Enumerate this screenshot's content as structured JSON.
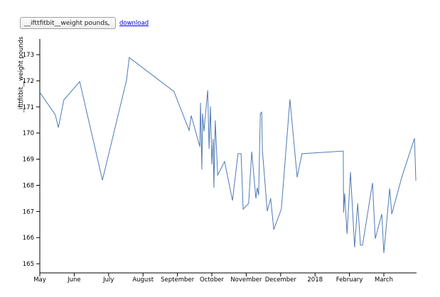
{
  "controls": {
    "selected": "__ifttfitbit__weight pounds",
    "download": "download"
  },
  "chart_data": {
    "type": "line",
    "y_label": "_ifttfitbit__weight pounds",
    "color": "#4e79b4",
    "x": [
      0,
      0.45,
      0.54,
      0.7,
      1.16,
      1.82,
      2.52,
      2.6,
      3.9,
      4.34,
      4.4,
      4.65,
      4.67,
      4.71,
      4.73,
      4.77,
      4.88,
      4.92,
      4.96,
      5.0,
      5.04,
      5.06,
      5.1,
      5.17,
      5.37,
      5.6,
      5.76,
      5.85,
      5.91,
      6.07,
      6.16,
      6.28,
      6.32,
      6.36,
      6.41,
      6.45,
      6.47,
      6.61,
      6.71,
      6.8,
      7.02,
      7.27,
      7.48,
      7.62,
      8.82,
      8.83,
      8.86,
      8.93,
      9.03,
      9.15,
      9.24,
      9.32,
      9.38,
      9.67,
      9.75,
      9.94,
      10.0,
      10.17,
      10.23,
      10.52,
      10.89,
      10.93
    ],
    "values": [
      171.56,
      170.7,
      170.21,
      171.27,
      171.97,
      168.2,
      172.02,
      172.89,
      171.59,
      170.1,
      170.67,
      169.48,
      171.16,
      168.61,
      170.75,
      170.07,
      171.64,
      169.4,
      171.02,
      168.8,
      169.78,
      167.91,
      170.48,
      168.39,
      168.91,
      167.42,
      169.21,
      169.21,
      167.09,
      167.31,
      169.29,
      167.5,
      167.91,
      167.63,
      170.75,
      170.8,
      169.34,
      167.01,
      167.5,
      166.31,
      167.09,
      171.29,
      168.31,
      169.21,
      169.31,
      166.96,
      167.69,
      166.14,
      168.5,
      165.63,
      167.31,
      165.71,
      165.71,
      168.09,
      165.96,
      166.9,
      165.41,
      167.88,
      166.9,
      168.31,
      169.8,
      168.18
    ],
    "xlim": [
      0,
      10.95
    ],
    "ylim": [
      164.65,
      173.6
    ],
    "xticks": [
      {
        "value": 0,
        "label": "May"
      },
      {
        "value": 1,
        "label": "June"
      },
      {
        "value": 2,
        "label": "July"
      },
      {
        "value": 3,
        "label": "August"
      },
      {
        "value": 4,
        "label": "September"
      },
      {
        "value": 5,
        "label": "October"
      },
      {
        "value": 6,
        "label": "November"
      },
      {
        "value": 7,
        "label": "December"
      },
      {
        "value": 8,
        "label": "2018"
      },
      {
        "value": 9,
        "label": "February"
      },
      {
        "value": 10,
        "label": "March"
      }
    ],
    "yticks": [
      165,
      166,
      167,
      168,
      169,
      170,
      171,
      172,
      173
    ]
  }
}
